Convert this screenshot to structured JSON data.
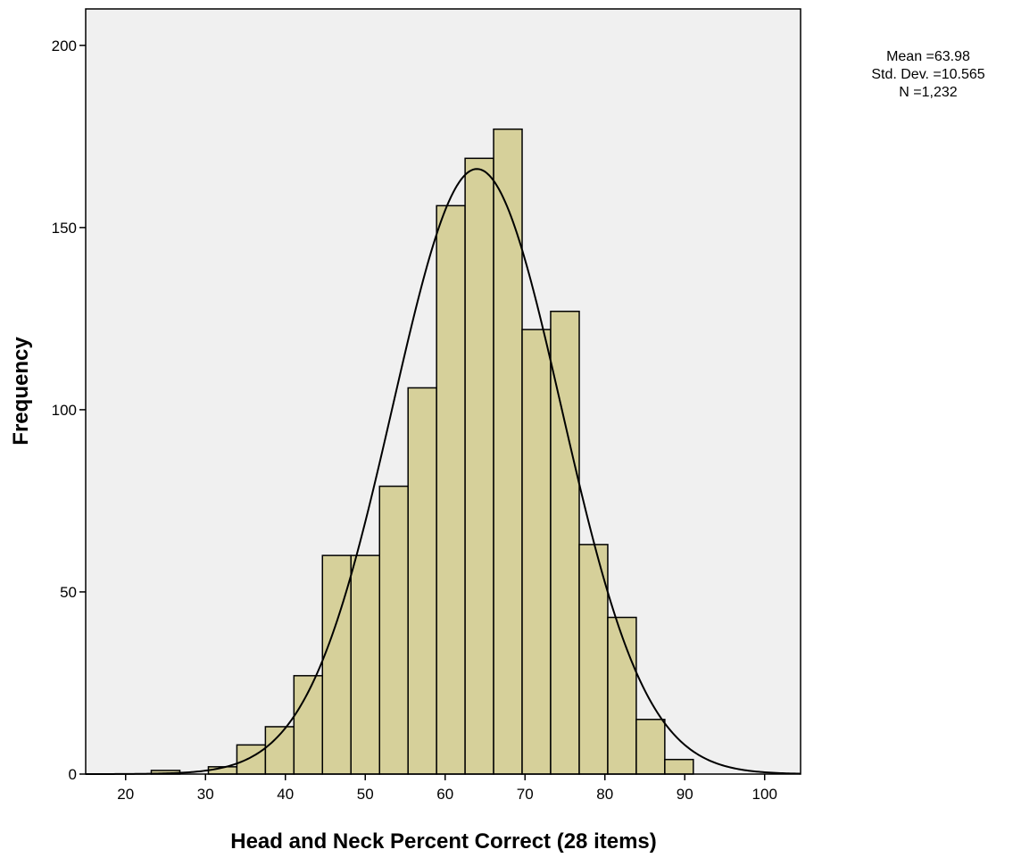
{
  "chart_data": {
    "type": "bar",
    "subtype": "histogram",
    "xlabel": "Head and Neck Percent Correct (28 items)",
    "ylabel": "Frequency",
    "xlim": [
      15,
      104.5
    ],
    "ylim": [
      0,
      210
    ],
    "xticks": [
      20,
      30,
      40,
      50,
      60,
      70,
      80,
      90,
      100
    ],
    "yticks": [
      0,
      50,
      100,
      150,
      200
    ],
    "bin_width": 3.57,
    "bins": [
      {
        "start": 19.64,
        "end": 23.21,
        "count": 0
      },
      {
        "start": 23.21,
        "end": 26.79,
        "count": 1
      },
      {
        "start": 26.79,
        "end": 30.36,
        "count": 0
      },
      {
        "start": 30.36,
        "end": 33.93,
        "count": 2
      },
      {
        "start": 33.93,
        "end": 37.5,
        "count": 8
      },
      {
        "start": 37.5,
        "end": 41.07,
        "count": 13
      },
      {
        "start": 41.07,
        "end": 44.64,
        "count": 27
      },
      {
        "start": 44.64,
        "end": 48.21,
        "count": 60
      },
      {
        "start": 48.21,
        "end": 51.79,
        "count": 60
      },
      {
        "start": 51.79,
        "end": 55.36,
        "count": 79
      },
      {
        "start": 55.36,
        "end": 58.93,
        "count": 106
      },
      {
        "start": 58.93,
        "end": 62.5,
        "count": 156
      },
      {
        "start": 62.5,
        "end": 66.07,
        "count": 169
      },
      {
        "start": 66.07,
        "end": 69.64,
        "count": 177
      },
      {
        "start": 69.64,
        "end": 73.21,
        "count": 122
      },
      {
        "start": 73.21,
        "end": 76.79,
        "count": 127
      },
      {
        "start": 76.79,
        "end": 80.36,
        "count": 63
      },
      {
        "start": 80.36,
        "end": 83.93,
        "count": 43
      },
      {
        "start": 83.93,
        "end": 87.5,
        "count": 15
      },
      {
        "start": 87.5,
        "end": 91.07,
        "count": 4
      }
    ],
    "normal_curve": {
      "mean": 63.98,
      "std": 10.565,
      "n": 1232
    },
    "grid": false,
    "legend": "none",
    "colors": {
      "bar_fill": "#d6d09a",
      "bar_stroke": "#000000",
      "plot_bg": "#f0f0f0",
      "curve": "#000000"
    }
  },
  "stats_box": {
    "mean": "Mean =63.98",
    "std": "Std. Dev. =10.565",
    "n": "N =1,232"
  }
}
